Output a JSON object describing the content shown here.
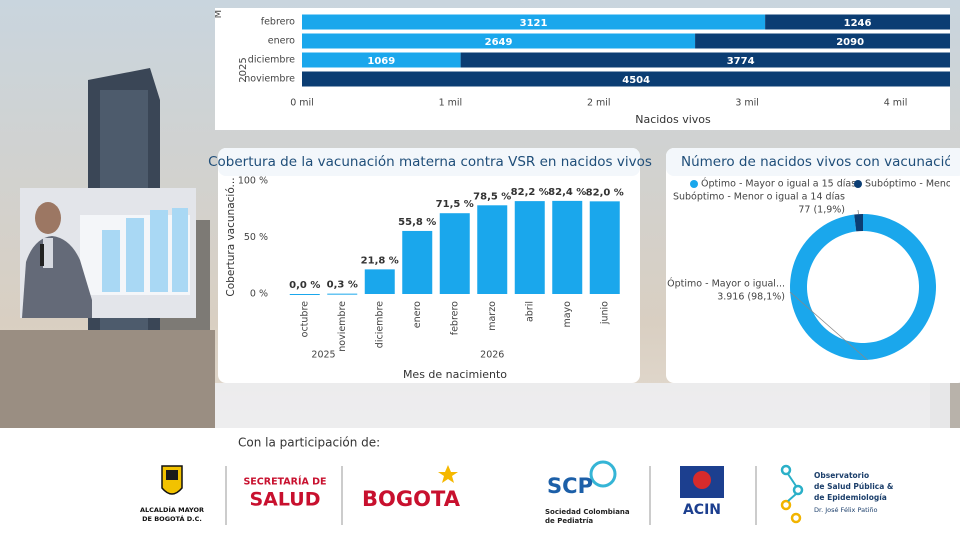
{
  "chart_data": [
    {
      "type": "bar",
      "orientation": "horizontal",
      "stacked": true,
      "y_label": "M",
      "group_label": "2025",
      "categories": [
        "febrero",
        "enero",
        "diciembre",
        "noviembre"
      ],
      "series": [
        {
          "color": "#1aa7ec",
          "values": [
            3121,
            2649,
            1069,
            0
          ]
        },
        {
          "color": "#0b3d73",
          "values": [
            1246,
            2090,
            3774,
            4504
          ]
        }
      ],
      "xlim": [
        0,
        4367
      ],
      "xticks": [
        {
          "value": 0,
          "label": "0 mil"
        },
        {
          "value": 1000,
          "label": "1 mil"
        },
        {
          "value": 2000,
          "label": "2 mil"
        },
        {
          "value": 3000,
          "label": "3 mil"
        },
        {
          "value": 4000,
          "label": "4 mil"
        }
      ],
      "x_label": "Nacidos vivos"
    },
    {
      "type": "bar",
      "orientation": "vertical",
      "title": "Cobertura de la vacunación materna contra VSR en nacidos vivos",
      "y_label": "Cobertura vacunació...",
      "x_label": "Mes de nacimiento",
      "categories": [
        "octubre",
        "noviembre",
        "diciembre",
        "enero",
        "febrero",
        "marzo",
        "abril",
        "mayo",
        "junio"
      ],
      "groups": [
        {
          "label": "2025",
          "span": 2
        },
        {
          "label": "2026",
          "span": 7
        }
      ],
      "values": [
        0.0,
        0.3,
        21.8,
        55.8,
        71.5,
        78.5,
        82.2,
        82.4,
        82.0
      ],
      "value_labels": [
        "0,0 %",
        "0,3 %",
        "21,8 %",
        "55,8 %",
        "71,5 %",
        "78,5 %",
        "82,2 %",
        "82,4 %",
        "82,0 %"
      ],
      "color": "#1aa7ec",
      "ylim": [
        0,
        100
      ],
      "yticks": [
        {
          "value": 0,
          "label": "0 %"
        },
        {
          "value": 50,
          "label": "50 %"
        },
        {
          "value": 100,
          "label": "100 %"
        }
      ]
    },
    {
      "type": "pie",
      "hole": true,
      "title": "Número de nacidos vivos con vacunación ópti",
      "legend": "top",
      "categories": [
        "Óptimo - Mayor o igual a 15 días",
        "Subóptimo - Meno"
      ],
      "labels": [
        "Óptimo - Mayor o igual...",
        "Subóptimo - Menor o igual a 14 días"
      ],
      "values": [
        3916,
        77
      ],
      "value_labels": [
        "3.916 (98,1%)",
        "77 (1,9%)"
      ],
      "colors": [
        "#1aa7ec",
        "#0b3d73"
      ]
    }
  ],
  "footer": {
    "heading": "Con la participación de:",
    "logos": [
      "ALCALDÍA MAYOR",
      "DE BOGOTÁ D.C.",
      "SECRETARÍA DE",
      "SALUD",
      "BOGOTA",
      "SCP",
      "Sociedad Colombiana",
      "de Pediatría",
      "ACIN",
      "Observatorio",
      "de Salud Pública &",
      "de Epidemiología",
      "Dr. José Félix Patiño"
    ]
  }
}
